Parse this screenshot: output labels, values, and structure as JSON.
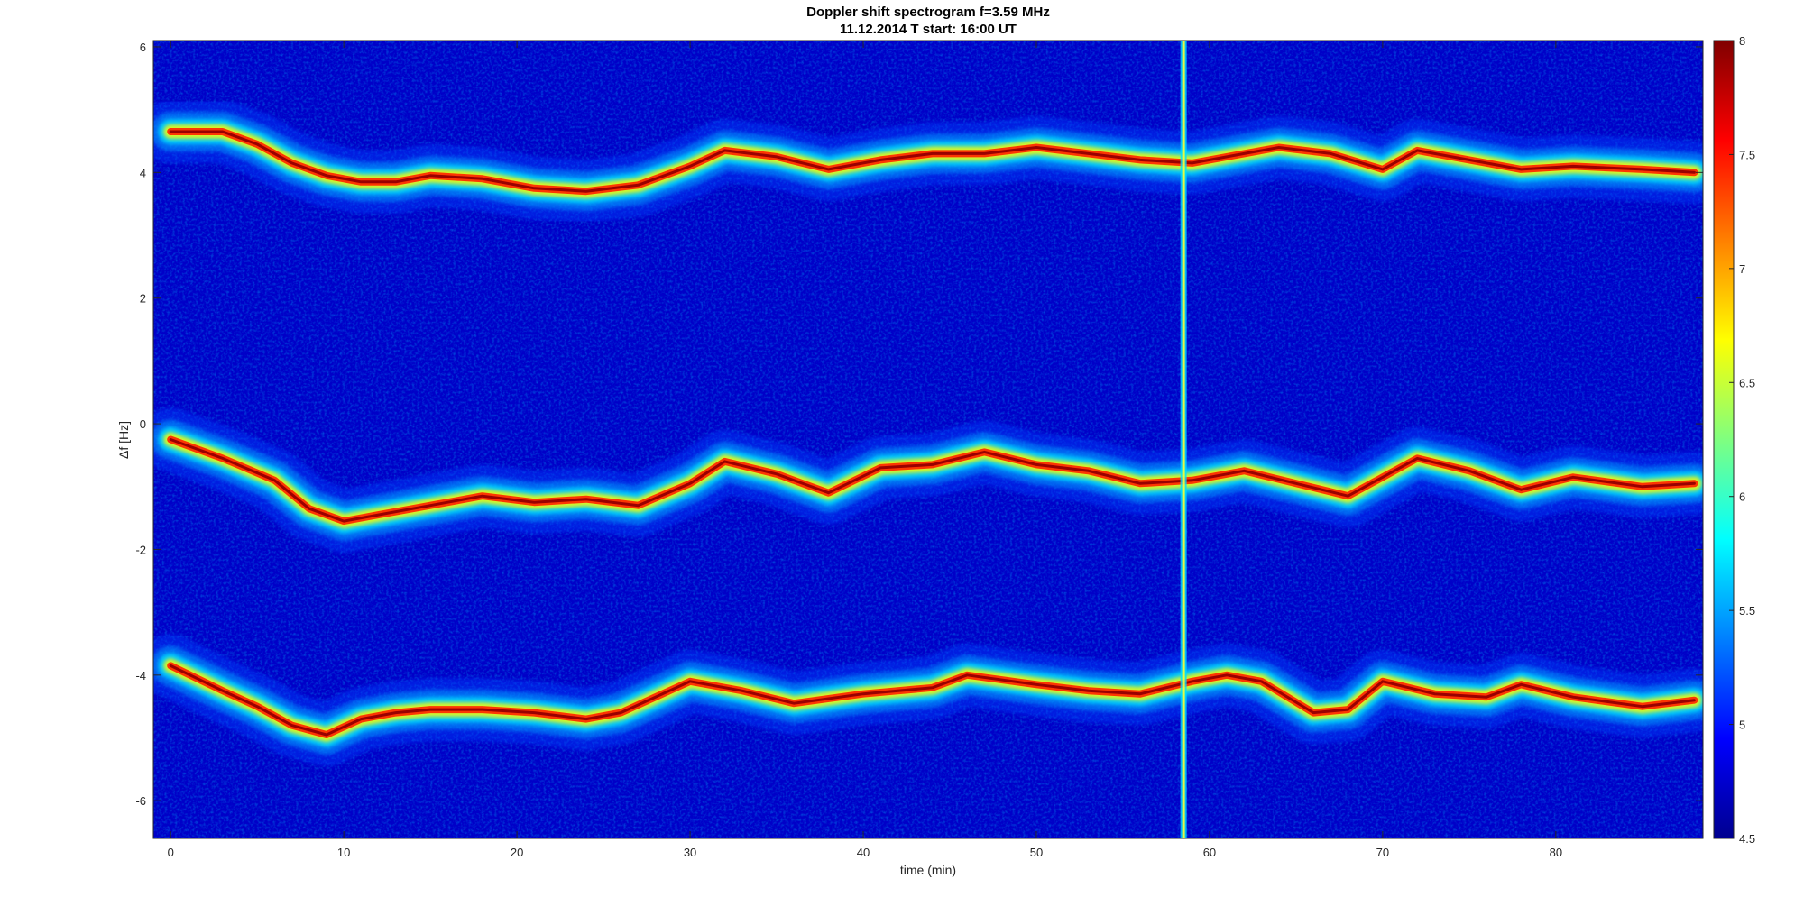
{
  "chart_data": {
    "type": "heatmap",
    "title": "Doppler shift spectrogram f=3.59 MHz",
    "subtitle": "11.12.2014   T start: 16:00 UT",
    "xlabel": "time (min)",
    "ylabel": "Δf [Hz]",
    "xlim": [
      -1,
      88.5
    ],
    "ylim": [
      -6.6,
      6.1
    ],
    "xticks": [
      0,
      10,
      20,
      30,
      40,
      50,
      60,
      70,
      80
    ],
    "yticks": [
      -6,
      -4,
      -2,
      0,
      2,
      4,
      6
    ],
    "colorbar": {
      "colormap": "jet",
      "range": [
        4.5,
        8
      ],
      "ticks": [
        4.5,
        5,
        5.5,
        6,
        6.5,
        7,
        7.5,
        8
      ]
    },
    "vertical_line_x": 58.5,
    "series": [
      {
        "x": [
          0,
          3,
          5,
          7,
          9,
          11,
          13,
          15,
          18,
          21,
          24,
          27,
          30,
          32,
          35,
          38,
          41,
          44,
          47,
          50,
          53,
          56,
          59,
          62,
          64,
          67,
          70,
          72,
          75,
          78,
          81,
          85,
          88
        ],
        "y": [
          4.65,
          4.65,
          4.45,
          4.15,
          3.95,
          3.85,
          3.85,
          3.95,
          3.9,
          3.75,
          3.7,
          3.8,
          4.1,
          4.35,
          4.25,
          4.05,
          4.2,
          4.3,
          4.3,
          4.4,
          4.3,
          4.2,
          4.15,
          4.3,
          4.4,
          4.3,
          4.05,
          4.35,
          4.2,
          4.05,
          4.1,
          4.05,
          4.0
        ]
      },
      {
        "x": [
          0,
          3,
          6,
          8,
          10,
          12,
          15,
          18,
          21,
          24,
          27,
          30,
          32,
          35,
          38,
          41,
          44,
          47,
          50,
          53,
          56,
          59,
          62,
          65,
          68,
          70,
          72,
          75,
          78,
          81,
          85,
          88
        ],
        "y": [
          -0.25,
          -0.55,
          -0.9,
          -1.35,
          -1.55,
          -1.45,
          -1.3,
          -1.15,
          -1.25,
          -1.2,
          -1.3,
          -0.95,
          -0.6,
          -0.8,
          -1.1,
          -0.7,
          -0.65,
          -0.45,
          -0.65,
          -0.75,
          -0.95,
          -0.9,
          -0.75,
          -0.95,
          -1.15,
          -0.85,
          -0.55,
          -0.75,
          -1.05,
          -0.85,
          -1.0,
          -0.95
        ]
      },
      {
        "x": [
          0,
          3,
          5,
          7,
          9,
          11,
          13,
          15,
          18,
          21,
          24,
          26,
          28,
          30,
          33,
          36,
          40,
          44,
          46,
          50,
          53,
          56,
          59,
          61,
          63,
          66,
          68,
          70,
          73,
          76,
          78,
          81,
          85,
          88
        ],
        "y": [
          -3.85,
          -4.25,
          -4.5,
          -4.8,
          -4.95,
          -4.7,
          -4.6,
          -4.55,
          -4.55,
          -4.6,
          -4.7,
          -4.6,
          -4.35,
          -4.1,
          -4.25,
          -4.45,
          -4.3,
          -4.2,
          -4.0,
          -4.15,
          -4.25,
          -4.3,
          -4.1,
          -4.0,
          -4.1,
          -4.6,
          -4.55,
          -4.1,
          -4.3,
          -4.35,
          -4.15,
          -4.35,
          -4.5,
          -4.4
        ]
      }
    ]
  }
}
